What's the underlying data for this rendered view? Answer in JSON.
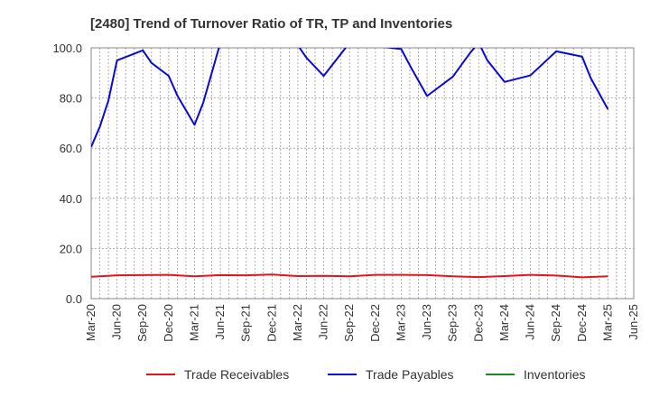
{
  "chart_data": {
    "type": "line",
    "title": "[2480]  Trend of Turnover Ratio of TR, TP and Inventories",
    "xlabel": "",
    "ylabel": "",
    "ylim": [
      0,
      100
    ],
    "yticks": [
      "0.0",
      "20.0",
      "40.0",
      "60.0",
      "80.0",
      "100.0"
    ],
    "x_tick_labels": [
      "Mar-20",
      "Jun-20",
      "Sep-20",
      "Dec-20",
      "Mar-21",
      "Jun-21",
      "Sep-21",
      "Dec-21",
      "Mar-22",
      "Jun-22",
      "Sep-22",
      "Dec-22",
      "Mar-23",
      "Jun-23",
      "Sep-23",
      "Dec-23",
      "Mar-24",
      "Jun-24",
      "Sep-24",
      "Dec-24",
      "Mar-25",
      "Jun-25"
    ],
    "x_months": [
      "2020-03",
      "2020-04",
      "2020-05",
      "2020-06",
      "2020-07",
      "2020-08",
      "2020-09",
      "2020-10",
      "2020-11",
      "2020-12",
      "2021-01",
      "2021-02",
      "2021-03",
      "2021-04",
      "2021-05",
      "2021-06",
      "2021-07",
      "2021-08",
      "2021-09",
      "2021-10",
      "2021-11",
      "2021-12",
      "2022-01",
      "2022-02",
      "2022-03",
      "2022-04",
      "2022-05",
      "2022-06",
      "2022-07",
      "2022-08",
      "2022-09",
      "2022-10",
      "2022-11",
      "2022-12",
      "2023-01",
      "2023-02",
      "2023-03",
      "2023-04",
      "2023-05",
      "2023-06",
      "2023-07",
      "2023-08",
      "2023-09",
      "2023-10",
      "2023-11",
      "2023-12",
      "2024-01",
      "2024-02",
      "2024-03",
      "2024-04",
      "2024-05",
      "2024-06",
      "2024-07",
      "2024-08",
      "2024-09",
      "2024-10",
      "2024-11",
      "2024-12",
      "2025-01",
      "2025-02",
      "2025-03",
      "2025-04",
      "2025-05",
      "2025-06"
    ],
    "grid": true,
    "legend_position": "bottom",
    "series": [
      {
        "name": "Trade Receivables",
        "color": "#e8141c",
        "points": [
          [
            "2020-03",
            8.7
          ],
          [
            "2020-06",
            9.3
          ],
          [
            "2020-09",
            9.4
          ],
          [
            "2020-12",
            9.5
          ],
          [
            "2021-03",
            8.9
          ],
          [
            "2021-06",
            9.4
          ],
          [
            "2021-09",
            9.3
          ],
          [
            "2021-12",
            9.6
          ],
          [
            "2022-03",
            9.0
          ],
          [
            "2022-06",
            9.1
          ],
          [
            "2022-09",
            8.9
          ],
          [
            "2022-12",
            9.5
          ],
          [
            "2023-03",
            9.5
          ],
          [
            "2023-06",
            9.4
          ],
          [
            "2023-09",
            8.9
          ],
          [
            "2023-12",
            8.6
          ],
          [
            "2024-03",
            9.0
          ],
          [
            "2024-06",
            9.5
          ],
          [
            "2024-09",
            9.2
          ],
          [
            "2024-12",
            8.5
          ],
          [
            "2025-03",
            8.9
          ]
        ]
      },
      {
        "name": "Trade Payables",
        "color": "#0a0ad6",
        "points": [
          [
            "2020-03",
            60.5
          ],
          [
            "2020-04",
            68.5
          ],
          [
            "2020-05",
            79.0
          ],
          [
            "2020-06",
            95.0
          ],
          [
            "2020-09",
            99.0
          ],
          [
            "2020-10",
            94.0
          ],
          [
            "2020-12",
            88.8
          ],
          [
            "2021-01",
            81.0
          ],
          [
            "2021-03",
            69.3
          ],
          [
            "2021-04",
            78.0
          ],
          [
            "2021-05",
            90.0
          ],
          [
            "2021-06",
            102.0
          ],
          [
            "2022-03",
            101.0
          ],
          [
            "2022-04",
            96.0
          ],
          [
            "2022-06",
            88.8
          ],
          [
            "2022-09",
            102.0
          ],
          [
            "2023-03",
            99.5
          ],
          [
            "2023-04",
            93.0
          ],
          [
            "2023-06",
            80.8
          ],
          [
            "2023-09",
            88.5
          ],
          [
            "2023-11",
            98.0
          ],
          [
            "2023-12",
            102.0
          ],
          [
            "2024-01",
            95.0
          ],
          [
            "2024-03",
            86.4
          ],
          [
            "2024-06",
            89.0
          ],
          [
            "2024-09",
            98.6
          ],
          [
            "2024-12",
            96.5
          ],
          [
            "2025-01",
            88.0
          ],
          [
            "2025-03",
            75.5
          ]
        ]
      },
      {
        "name": "Inventories",
        "color": "#1a8a1a",
        "points": []
      }
    ]
  }
}
